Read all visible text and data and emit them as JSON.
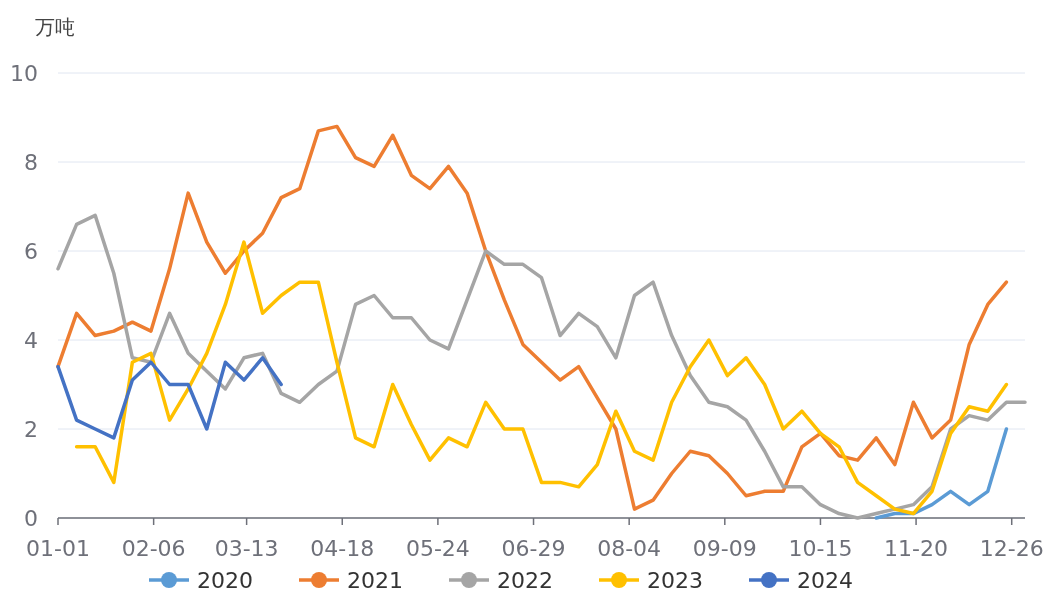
{
  "chart_data": {
    "type": "line",
    "ylabel": "万吨",
    "x": [
      "--01-01",
      "--01-08",
      "--01-15",
      "--01-22",
      "--01-29",
      "--02-05",
      "--02-12",
      "--02-19",
      "--02-26",
      "--03-05",
      "--03-12",
      "--03-19",
      "--03-26",
      "--04-02",
      "--04-09",
      "--04-16",
      "--04-23",
      "--04-30",
      "--05-07",
      "--05-14",
      "--05-21",
      "--05-28",
      "--06-04",
      "--06-11",
      "--06-18",
      "--06-25",
      "--07-02",
      "--07-09",
      "--07-16",
      "--07-23",
      "--07-30",
      "--08-06",
      "--08-13",
      "--08-20",
      "--08-27",
      "--09-03",
      "--09-10",
      "--09-17",
      "--09-24",
      "--10-01",
      "--10-08",
      "--10-15",
      "--10-22",
      "--10-29",
      "--11-05",
      "--11-12",
      "--11-19",
      "--11-26",
      "--12-03",
      "--12-10",
      "--12-17",
      "--12-24"
    ],
    "series": [
      {
        "name": "2020",
        "color": "#5b9bd5",
        "values": [
          null,
          null,
          null,
          null,
          null,
          null,
          null,
          null,
          null,
          null,
          null,
          null,
          null,
          null,
          null,
          null,
          null,
          null,
          null,
          null,
          null,
          null,
          null,
          null,
          null,
          null,
          null,
          null,
          null,
          null,
          null,
          null,
          null,
          null,
          null,
          null,
          null,
          null,
          null,
          null,
          null,
          null,
          null,
          null,
          0.0,
          0.1,
          0.1,
          0.3,
          0.6,
          0.3,
          0.6,
          2.0
        ]
      },
      {
        "name": "2021",
        "color": "#ed7d31",
        "values": [
          3.4,
          4.6,
          4.1,
          4.2,
          4.4,
          4.2,
          5.6,
          7.3,
          6.2,
          5.5,
          6.0,
          6.4,
          7.2,
          7.4,
          8.7,
          8.8,
          8.1,
          7.9,
          8.6,
          7.7,
          7.4,
          7.9,
          7.3,
          6.0,
          4.9,
          3.9,
          3.5,
          3.1,
          3.4,
          2.7,
          2.0,
          0.2,
          0.4,
          1.0,
          1.5,
          1.4,
          1.0,
          0.5,
          0.6,
          0.6,
          1.6,
          1.9,
          1.4,
          1.3,
          1.8,
          1.2,
          2.6,
          1.8,
          2.2,
          3.9,
          4.8,
          5.3
        ]
      },
      {
        "name": "2022",
        "color": "#a5a5a5",
        "x": [
          "--01-01",
          "--01-08",
          "--01-15",
          "--01-22",
          "--01-29",
          "--02-05",
          "--02-12",
          "--02-19",
          "--02-26",
          "--03-05",
          "--03-12",
          "--03-19",
          "--03-26",
          "--04-02",
          "--04-09",
          "--04-16",
          "--04-23",
          "--04-30",
          "--05-07",
          "--05-14",
          "--05-21",
          "--05-28",
          "--06-04",
          "--06-11",
          "--06-18",
          "--06-25",
          "--07-02",
          "--07-09",
          "--07-16",
          "--07-23",
          "--07-30",
          "--08-06",
          "--08-13",
          "--08-20",
          "--08-27",
          "--09-03",
          "--09-10",
          "--09-17",
          "--09-24",
          "--10-01",
          "--10-08",
          "--10-15",
          "--10-22",
          "--10-29",
          "--11-05",
          "--11-12",
          "--11-19",
          "--11-26",
          "--12-03",
          "--12-10",
          "--12-17",
          "--12-24",
          "--12-31"
        ],
        "values": [
          5.6,
          6.6,
          6.8,
          5.5,
          3.6,
          3.5,
          4.6,
          3.7,
          3.3,
          2.9,
          3.6,
          3.7,
          2.8,
          2.6,
          3.0,
          3.3,
          4.8,
          5.0,
          4.5,
          4.5,
          4.0,
          3.8,
          4.9,
          6.0,
          5.7,
          5.7,
          5.4,
          4.1,
          4.6,
          4.3,
          3.6,
          5.0,
          5.3,
          4.1,
          3.2,
          2.6,
          2.5,
          2.2,
          1.5,
          0.7,
          0.7,
          0.3,
          0.1,
          0.0,
          0.1,
          0.2,
          0.3,
          0.7,
          2.0,
          2.3,
          2.2,
          2.6,
          2.6
        ]
      },
      {
        "name": "2023",
        "color": "#ffc000",
        "values": [
          null,
          1.6,
          1.6,
          0.8,
          3.5,
          3.7,
          2.2,
          2.9,
          3.7,
          4.8,
          6.2,
          4.6,
          5.0,
          5.3,
          5.3,
          3.5,
          1.8,
          1.6,
          3.0,
          2.1,
          1.3,
          1.8,
          1.6,
          2.6,
          2.0,
          2.0,
          0.8,
          0.8,
          0.7,
          1.2,
          2.4,
          1.5,
          1.3,
          2.6,
          3.4,
          4.0,
          3.2,
          3.6,
          3.0,
          2.0,
          2.4,
          1.9,
          1.6,
          0.8,
          0.5,
          0.2,
          0.1,
          0.6,
          1.9,
          2.5,
          2.4,
          3.0
        ]
      },
      {
        "name": "2024",
        "color": "#4472c4",
        "x": [
          "--01-01",
          "--01-08",
          "--01-15",
          "--01-22",
          "--01-29",
          "--02-05",
          "--02-12",
          "--02-19",
          "--02-26",
          "--03-05",
          "--03-12",
          "--03-19",
          "--03-26"
        ],
        "values": [
          3.4,
          2.2,
          2.0,
          1.8,
          3.1,
          3.5,
          3.0,
          3.0,
          2.0,
          3.5,
          3.1,
          3.6,
          3.0
        ]
      }
    ],
    "xlim": [
      "--01-01",
      "--12-31"
    ],
    "xticks": [
      {
        "value": "--01-01",
        "label": "01-01"
      },
      {
        "value": "--02-06",
        "label": "02-06"
      },
      {
        "value": "--03-13",
        "label": "03-13"
      },
      {
        "value": "--04-18",
        "label": "04-18"
      },
      {
        "value": "--05-24",
        "label": "05-24"
      },
      {
        "value": "--06-29",
        "label": "06-29"
      },
      {
        "value": "--08-04",
        "label": "08-04"
      },
      {
        "value": "--09-09",
        "label": "09-09"
      },
      {
        "value": "--10-15",
        "label": "10-15"
      },
      {
        "value": "--11-20",
        "label": "11-20"
      },
      {
        "value": "--12-26",
        "label": "12-26"
      }
    ],
    "ylim": [
      0,
      10
    ],
    "yticks": [
      0,
      2,
      4,
      6,
      8,
      10
    ],
    "grid": "y",
    "legend": "bottom",
    "marker": "none",
    "line_style": "solid"
  }
}
